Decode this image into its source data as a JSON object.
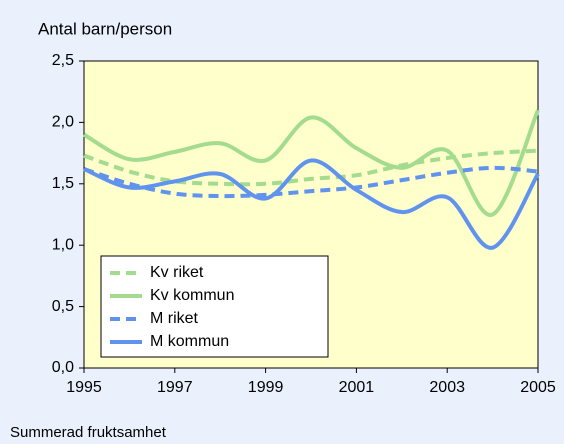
{
  "chart_data": {
    "type": "line",
    "title": "Antal barn/person",
    "footer": "Summerad fruktsamhet",
    "x": [
      1995,
      1996,
      1997,
      1998,
      1999,
      2000,
      2001,
      2002,
      2003,
      2004,
      2005
    ],
    "xlim": [
      1995,
      2005
    ],
    "xticks": [
      1995,
      1997,
      1999,
      2001,
      2003,
      2005
    ],
    "ylim": [
      0,
      2.5
    ],
    "yticks": [
      {
        "value": 0,
        "label": "0,0"
      },
      {
        "value": 0.5,
        "label": "0,5"
      },
      {
        "value": 1,
        "label": "1,0"
      },
      {
        "value": 1.5,
        "label": "1,5"
      },
      {
        "value": 2,
        "label": "2,0"
      },
      {
        "value": 2.5,
        "label": "2,5"
      }
    ],
    "smooth": true,
    "series": [
      {
        "name": "Kv riket",
        "color": "#a3dc8e",
        "dash": true,
        "values": [
          1.73,
          1.6,
          1.52,
          1.5,
          1.5,
          1.54,
          1.57,
          1.65,
          1.71,
          1.75,
          1.77
        ]
      },
      {
        "name": "Kv kommun",
        "color": "#a3dc8e",
        "dash": false,
        "values": [
          1.9,
          1.7,
          1.76,
          1.83,
          1.69,
          2.04,
          1.79,
          1.63,
          1.77,
          1.25,
          2.1
        ]
      },
      {
        "name": "M riket",
        "color": "#5f93ee",
        "dash": true,
        "values": [
          1.62,
          1.5,
          1.42,
          1.4,
          1.41,
          1.44,
          1.47,
          1.53,
          1.59,
          1.63,
          1.6
        ]
      },
      {
        "name": "M kommun",
        "color": "#5f93ee",
        "dash": false,
        "values": [
          1.62,
          1.47,
          1.52,
          1.58,
          1.38,
          1.69,
          1.45,
          1.27,
          1.39,
          0.98,
          1.58
        ]
      }
    ]
  }
}
